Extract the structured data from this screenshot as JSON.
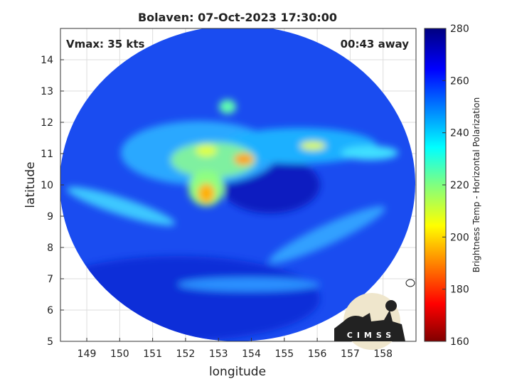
{
  "map": {
    "title": "Bolaven: 07-Oct-2023 17:30:00",
    "annotations": [
      "Vmax: 35 kts",
      "00:43 away"
    ],
    "xlabel": "longitude",
    "ylabel": "latitude",
    "xlim": [
      148.2,
      159
    ],
    "ylim": [
      5,
      15
    ],
    "xticks": [
      149,
      150,
      151,
      152,
      153,
      154,
      155,
      156,
      157,
      158
    ],
    "yticks": [
      5,
      6,
      7,
      8,
      9,
      10,
      11,
      12,
      13,
      14
    ],
    "grid": true,
    "colorbar": {
      "label": "Brightness Temp - Horizontal Polarization",
      "lim": [
        160,
        280
      ],
      "ticks": [
        160,
        180,
        200,
        220,
        240,
        260,
        280
      ],
      "colormap": "jet"
    },
    "logo": "CIMSS"
  }
}
